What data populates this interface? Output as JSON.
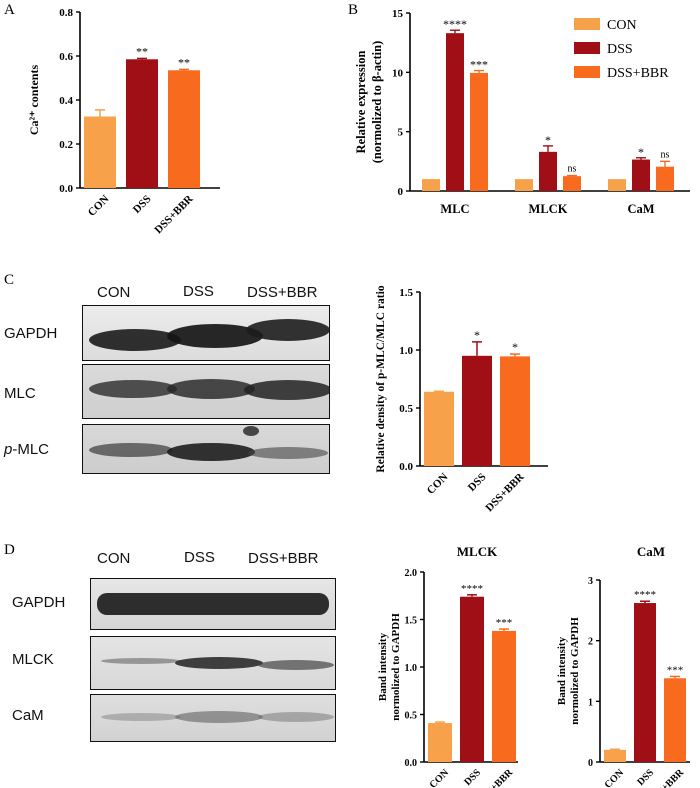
{
  "panels": {
    "A": "A",
    "B": "B",
    "C": "C",
    "D": "D"
  },
  "colors": {
    "con": "#F7A14A",
    "dss": "#A00E16",
    "bbr": "#F86A1E"
  },
  "chart_data": [
    {
      "id": "A",
      "type": "bar",
      "categories": [
        "CON",
        "DSS",
        "DSS+BBR"
      ],
      "values": [
        0.325,
        0.585,
        0.535
      ],
      "errors": [
        0.03,
        0.004,
        0.004
      ],
      "sig": [
        "",
        "**",
        "**"
      ],
      "ylabel": "Ca²⁺ contents",
      "ylim": [
        0,
        0.8
      ],
      "yticks": [
        "0.0",
        "0.2",
        "0.4",
        "0.6",
        "0.8"
      ]
    },
    {
      "id": "B",
      "type": "bar",
      "categories": [
        "MLC",
        "MLCK",
        "CaM"
      ],
      "series": [
        {
          "name": "CON",
          "values": [
            1,
            1,
            1
          ],
          "errors": [
            0,
            0,
            0
          ],
          "sig": [
            "",
            "",
            ""
          ]
        },
        {
          "name": "DSS",
          "values": [
            13.3,
            3.3,
            2.65
          ],
          "errors": [
            0.25,
            0.5,
            0.15
          ],
          "sig": [
            "****",
            "*",
            "*"
          ]
        },
        {
          "name": "DSS+BBR",
          "values": [
            9.95,
            1.25,
            2.05
          ],
          "errors": [
            0.2,
            0.05,
            0.45
          ],
          "sig": [
            "***",
            "ns",
            "ns"
          ]
        }
      ],
      "ylabel_lines": [
        "Relative expression",
        "(normolized to β-actin)"
      ],
      "ylim": [
        0,
        15
      ],
      "yticks": [
        "0",
        "5",
        "10",
        "15"
      ],
      "legend": "top-right"
    },
    {
      "id": "C",
      "type": "bar",
      "categories": [
        "CON",
        "DSS",
        "DSS+BBR"
      ],
      "values": [
        0.64,
        0.95,
        0.945
      ],
      "errors": [
        0.005,
        0.12,
        0.02
      ],
      "sig": [
        "",
        "*",
        "*"
      ],
      "ylabel": "Relative density of p-MLC/MLC ratio",
      "ylim": [
        0,
        1.5
      ],
      "yticks": [
        "0.0",
        "0.5",
        "1.0",
        "1.5"
      ]
    },
    {
      "id": "D1",
      "type": "bar",
      "title": "MLCK",
      "categories": [
        "CON",
        "DSS",
        "DSS+BBR"
      ],
      "values": [
        0.41,
        1.74,
        1.38
      ],
      "errors": [
        0.01,
        0.02,
        0.02
      ],
      "sig": [
        "",
        "****",
        "***"
      ],
      "ylabel_lines": [
        "Band intensity",
        "normolized to GAPDH"
      ],
      "ylim": [
        0,
        2.0
      ],
      "yticks": [
        "0.0",
        "0.5",
        "1.0",
        "1.5",
        "2.0"
      ]
    },
    {
      "id": "D2",
      "type": "bar",
      "title": "CaM",
      "categories": [
        "CON",
        "DSS",
        "DSS+BBR"
      ],
      "values": [
        0.2,
        2.62,
        1.38
      ],
      "errors": [
        0.01,
        0.03,
        0.03
      ],
      "sig": [
        "",
        "****",
        "***"
      ],
      "ylabel_lines": [
        "Band intensity",
        "normolized to GAPDH"
      ],
      "ylim": [
        0,
        3
      ],
      "yticks": [
        "0",
        "1",
        "2",
        "3"
      ]
    }
  ],
  "blots": {
    "C": {
      "lanes": [
        "CON",
        "DSS",
        "DSS+BBR"
      ],
      "rows": [
        "GAPDH",
        "MLC",
        "p-MLC"
      ],
      "italic_prefix": "p",
      "row_rest": "-MLC"
    },
    "D": {
      "lanes": [
        "CON",
        "DSS",
        "DSS+BBR"
      ],
      "rows": [
        "GAPDH",
        "MLCK",
        "CaM"
      ]
    }
  }
}
